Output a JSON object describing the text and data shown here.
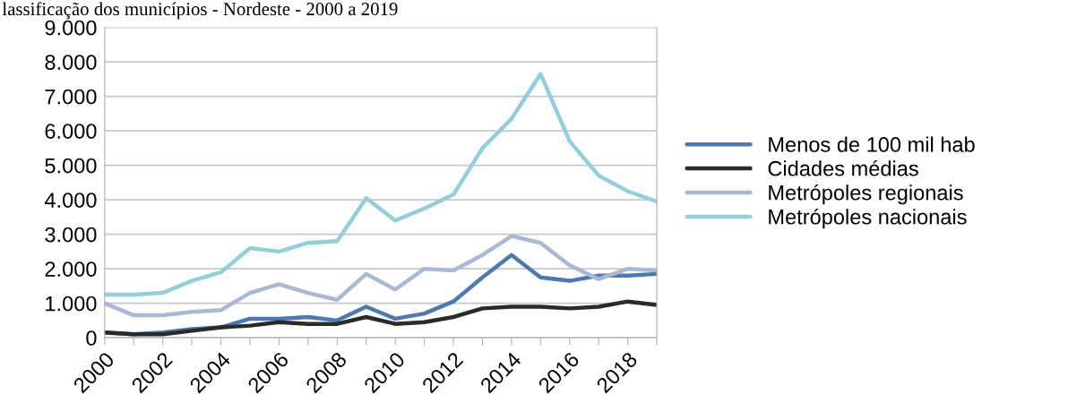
{
  "chart_data": {
    "type": "line",
    "title": "lassificação dos municípios - Nordeste - 2000 a 2019",
    "x": [
      2000,
      2001,
      2002,
      2003,
      2004,
      2005,
      2006,
      2007,
      2008,
      2009,
      2010,
      2011,
      2012,
      2013,
      2014,
      2015,
      2016,
      2017,
      2018,
      2019
    ],
    "series": [
      {
        "name": "Menos de 100 mil hab",
        "color": "#4a7ab4",
        "values": [
          150,
          100,
          150,
          250,
          300,
          550,
          550,
          600,
          500,
          900,
          550,
          700,
          1050,
          1750,
          2400,
          1750,
          1650,
          1800,
          1800,
          1850
        ]
      },
      {
        "name": "Cidades médias",
        "color": "#2a2a2a",
        "values": [
          150,
          100,
          100,
          200,
          300,
          350,
          450,
          400,
          400,
          600,
          400,
          450,
          600,
          850,
          900,
          900,
          850,
          900,
          1050,
          950
        ]
      },
      {
        "name": "Metrópoles regionais",
        "color": "#a9b8d8",
        "values": [
          1000,
          650,
          650,
          750,
          800,
          1300,
          1550,
          1300,
          1100,
          1850,
          1400,
          2000,
          1950,
          2400,
          2950,
          2750,
          2100,
          1700,
          2000,
          1950
        ]
      },
      {
        "name": "Metrópoles nacionais",
        "color": "#8fd0dc",
        "values": [
          1250,
          1250,
          1300,
          1650,
          1900,
          2600,
          2500,
          2750,
          2800,
          4050,
          3400,
          3750,
          4150,
          5500,
          6350,
          7650,
          5700,
          4700,
          4250,
          3950
        ]
      }
    ],
    "xlim": [
      2000,
      2019
    ],
    "xticks": [
      2000,
      {
        "value": 2001,
        "label": null
      },
      2002,
      {
        "value": 2003,
        "label": null
      },
      2004,
      {
        "value": 2005,
        "label": null
      },
      2006,
      {
        "value": 2007,
        "label": null
      },
      2008,
      {
        "value": 2009,
        "label": null
      },
      2010,
      {
        "value": 2011,
        "label": null
      },
      2012,
      {
        "value": 2013,
        "label": null
      },
      2014,
      {
        "value": 2015,
        "label": null
      },
      2016,
      {
        "value": 2017,
        "label": null
      },
      2018,
      {
        "value": 2019,
        "label": null
      }
    ],
    "ylim": [
      0,
      9000
    ],
    "yticks": [
      {
        "value": 0,
        "label": "0"
      },
      {
        "value": 1000,
        "label": "1.000"
      },
      {
        "value": 2000,
        "label": "2.000"
      },
      {
        "value": 3000,
        "label": "3.000"
      },
      {
        "value": 4000,
        "label": "4.000"
      },
      {
        "value": 5000,
        "label": "5.000"
      },
      {
        "value": 6000,
        "label": "6.000"
      },
      {
        "value": 7000,
        "label": "7.000"
      },
      {
        "value": 8000,
        "label": "8.000"
      },
      {
        "value": 9000,
        "label": "9.000"
      }
    ],
    "grid": "y",
    "legend": "right",
    "marker": "none",
    "line_style": "solid"
  }
}
